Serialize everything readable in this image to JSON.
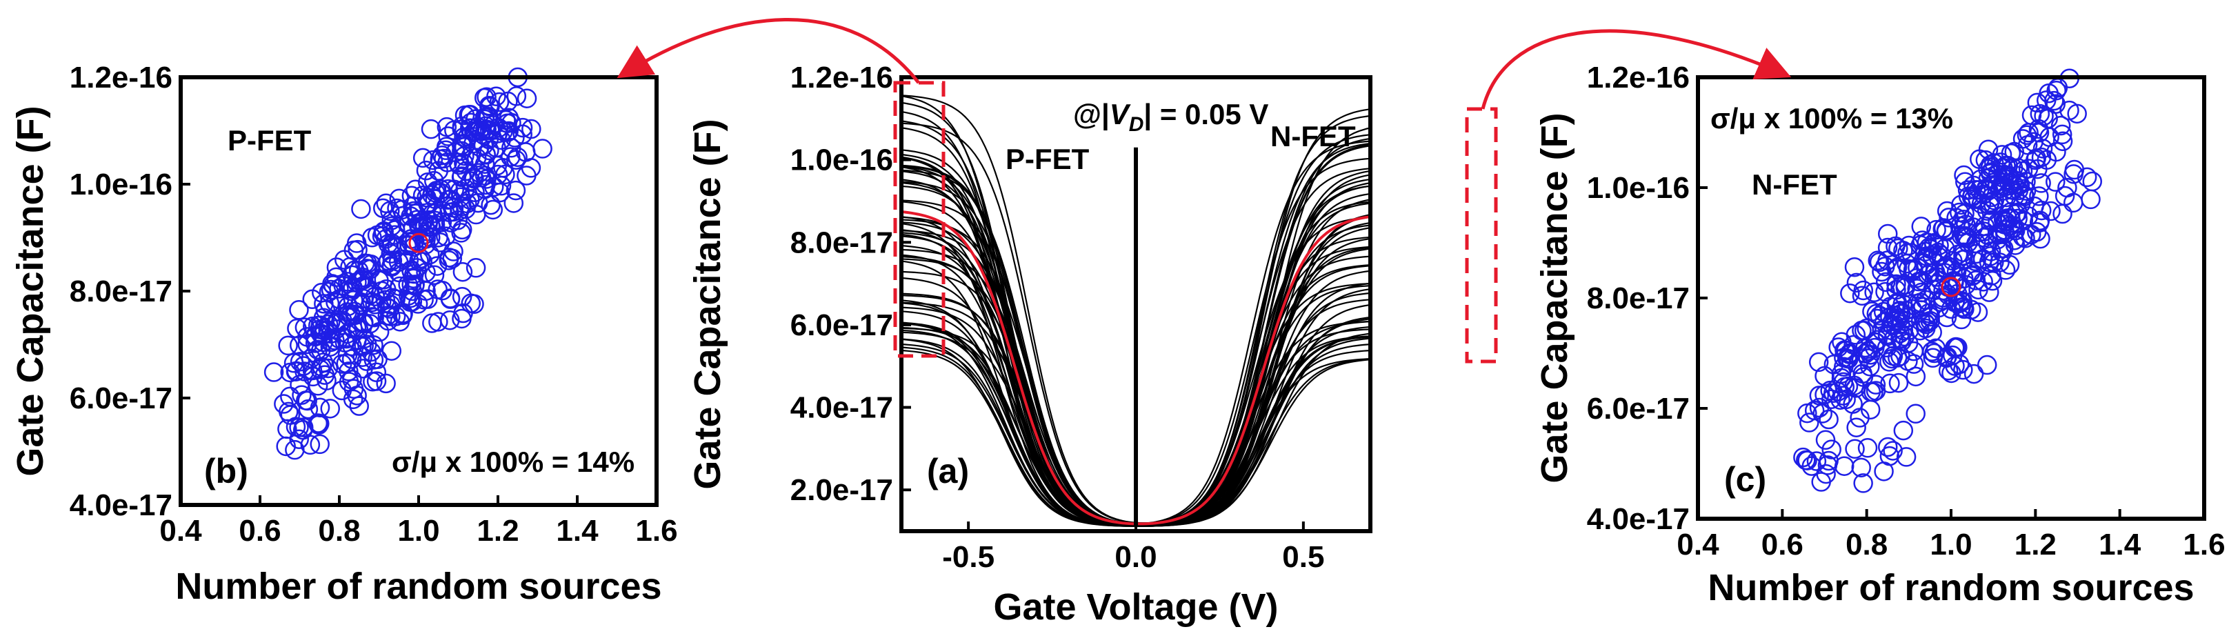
{
  "figure": {
    "colors": {
      "axis": "#000000",
      "scatter": "#1f1fe6",
      "mean": "#e6192b",
      "curve": "#000000",
      "mean_curve": "#e6192b",
      "highlight": "#e6192b"
    }
  },
  "chart_data": [
    {
      "id": "b",
      "type": "scatter",
      "panel_label": "(b)",
      "device_label": "P-FET",
      "stat_label": "σ/μ x 100% = 14%",
      "xlabel": "Number of random sources",
      "ylabel": "Gate Capacitance (F)",
      "xlim": [
        0.4,
        1.6
      ],
      "ylim": [
        4e-17,
        1.2e-16
      ],
      "xticks": [
        0.4,
        0.6,
        0.8,
        1.0,
        1.2,
        1.4,
        1.6
      ],
      "xtick_labels": [
        "0.4",
        "0.6",
        "0.8",
        "1.0",
        "1.2",
        "1.4",
        "1.6"
      ],
      "yticks": [
        4e-17,
        6e-17,
        8e-17,
        1e-16,
        1.2e-16
      ],
      "ytick_labels": [
        "4.0e-17",
        "6.0e-17",
        "8.0e-17",
        "1.0e-16",
        "1.2e-16"
      ],
      "mean_point": {
        "x": 1.0,
        "y": 8.9e-17
      },
      "series": [
        {
          "name": "samples",
          "points": [
            [
              0.71,
              5.45e-17
            ],
            [
              0.7,
              6.25e-17
            ],
            [
              0.71,
              6.6e-17
            ],
            [
              0.74,
              7.15e-17
            ],
            [
              0.76,
              7.5e-17
            ],
            [
              0.78,
              7.05e-17
            ],
            [
              0.8,
              7.85e-17
            ],
            [
              0.81,
              8.1e-17
            ],
            [
              0.82,
              7.2e-17
            ],
            [
              0.84,
              7.55e-17
            ],
            [
              0.85,
              5.85e-17
            ],
            [
              0.86,
              6.55e-17
            ],
            [
              0.87,
              7e-17
            ],
            [
              0.88,
              8.5e-17
            ],
            [
              0.89,
              7.9e-17
            ],
            [
              0.9,
              8.2e-17
            ],
            [
              0.91,
              9.55e-17
            ],
            [
              0.92,
              7.7e-17
            ],
            [
              0.93,
              8.7e-17
            ],
            [
              0.94,
              9.05e-17
            ],
            [
              0.95,
              8.35e-17
            ],
            [
              0.96,
              7.55e-17
            ],
            [
              0.97,
              8.85e-17
            ],
            [
              0.98,
              9.4e-17
            ],
            [
              0.99,
              8.1e-17
            ],
            [
              1.0,
              9.25e-17
            ],
            [
              1.01,
              8.55e-17
            ],
            [
              1.02,
              9.75e-17
            ],
            [
              1.03,
              9e-17
            ],
            [
              1.04,
              8.3e-17
            ],
            [
              1.05,
              1.025e-16
            ],
            [
              1.06,
              9.5e-17
            ],
            [
              1.07,
              1.07e-16
            ],
            [
              1.08,
              7.85e-17
            ],
            [
              1.09,
              9.9e-17
            ],
            [
              1.1,
              1.04e-16
            ],
            [
              1.11,
              9.15e-17
            ],
            [
              1.12,
              1.085e-16
            ],
            [
              1.13,
              1.13e-16
            ],
            [
              1.14,
              1.01e-16
            ],
            [
              1.15,
              9.65e-17
            ],
            [
              1.16,
              1.1e-16
            ],
            [
              1.17,
              1.055e-16
            ],
            [
              1.18,
              1.145e-16
            ],
            [
              1.2,
              1.095e-16
            ],
            [
              1.22,
              1.12e-16
            ],
            [
              1.25,
              1.2e-16
            ],
            [
              1.27,
              1.06e-16
            ],
            [
              1.19,
              9.95e-17
            ],
            [
              0.83,
              8e-17
            ]
          ]
        }
      ]
    },
    {
      "id": "a",
      "type": "line",
      "panel_label": "(a)",
      "annotation": "@|V_D| = 0.05 V",
      "left_label": "P-FET",
      "right_label": "N-FET",
      "xlabel": "Gate Voltage (V)",
      "ylabel": "Gate Capacitance (F)",
      "xlim": [
        -0.7,
        0.7
      ],
      "ylim": [
        1e-17,
        1.2e-16
      ],
      "xticks": [
        -0.5,
        0.0,
        0.5
      ],
      "xtick_labels": [
        "-0.5",
        "0.0",
        "0.5"
      ],
      "yticks": [
        2e-17,
        4e-17,
        6e-17,
        8e-17,
        1e-16,
        1.2e-16
      ],
      "ytick_labels": [
        "2.0e-17",
        "4.0e-17",
        "6.0e-17",
        "8.0e-17",
        "1.0e-16",
        "1.2e-16"
      ],
      "pfet_curve_count": 60,
      "pfet_max_range": [
        5.3e-17,
        1.2e-16
      ],
      "nfet_max_range": [
        5.2e-17,
        1.13e-16
      ],
      "min_capacitance": 1.1e-17,
      "mean_curve": {
        "pfet_max": 8.8e-17,
        "nfet_max": 8.7e-17
      },
      "vd_line": {
        "x": 0.0,
        "y": 1.03e-16
      }
    },
    {
      "id": "c",
      "type": "scatter",
      "panel_label": "(c)",
      "device_label": "N-FET",
      "stat_label": "σ/μ x 100% = 13%",
      "xlabel": "Number of random sources",
      "ylabel": "Gate Capacitance (F)",
      "xlim": [
        0.4,
        1.6
      ],
      "ylim": [
        4e-17,
        1.2e-16
      ],
      "xticks": [
        0.4,
        0.6,
        0.8,
        1.0,
        1.2,
        1.4,
        1.6
      ],
      "xtick_labels": [
        "0.4",
        "0.6",
        "0.8",
        "1.0",
        "1.2",
        "1.4",
        "1.6"
      ],
      "yticks": [
        4e-17,
        6e-17,
        8e-17,
        1e-16,
        1.2e-16
      ],
      "ytick_labels": [
        "4.0e-17",
        "6.0e-17",
        "8.0e-17",
        "1.0e-16",
        "1.2e-16"
      ],
      "mean_point": {
        "x": 1.0,
        "y": 8.2e-17
      },
      "series": [
        {
          "name": "samples",
          "points": [
            [
              0.71,
              5.05e-17
            ],
            [
              0.71,
              5.8e-17
            ],
            [
              0.7,
              6.25e-17
            ],
            [
              0.74,
              6.55e-17
            ],
            [
              0.76,
              7e-17
            ],
            [
              0.78,
              6.8e-17
            ],
            [
              0.8,
              7.45e-17
            ],
            [
              0.81,
              6.3e-17
            ],
            [
              0.82,
              7.2e-17
            ],
            [
              0.84,
              7.75e-17
            ],
            [
              0.85,
              5.3e-17
            ],
            [
              0.86,
              6.9e-17
            ],
            [
              0.87,
              7.6e-17
            ],
            [
              0.88,
              8.2e-17
            ],
            [
              0.89,
              7.3e-17
            ],
            [
              0.9,
              8.95e-17
            ],
            [
              0.91,
              8.5e-17
            ],
            [
              0.92,
              7.9e-17
            ],
            [
              0.93,
              8.1e-17
            ],
            [
              0.94,
              7.45e-17
            ],
            [
              0.95,
              8.45e-17
            ],
            [
              0.96,
              7e-17
            ],
            [
              0.97,
              8.75e-17
            ],
            [
              0.98,
              9.25e-17
            ],
            [
              0.99,
              7.65e-17
            ],
            [
              1.0,
              8.55e-17
            ],
            [
              1.01,
              7.95e-17
            ],
            [
              1.02,
              9.55e-17
            ],
            [
              1.03,
              8.35e-17
            ],
            [
              1.04,
              9e-17
            ],
            [
              1.05,
              9.85e-17
            ],
            [
              1.06,
              8.8e-17
            ],
            [
              1.07,
              1.015e-16
            ],
            [
              1.08,
              9.3e-17
            ],
            [
              1.09,
              8.65e-17
            ],
            [
              1.1,
              9.7e-17
            ],
            [
              1.11,
              1.005e-16
            ],
            [
              1.12,
              8.9e-17
            ],
            [
              1.13,
              1.04e-16
            ],
            [
              1.14,
              9.45e-17
            ],
            [
              1.15,
              1.065e-16
            ],
            [
              1.16,
              9.95e-17
            ],
            [
              1.17,
              1.03e-16
            ],
            [
              1.19,
              9.15e-17
            ],
            [
              1.2,
              1.05e-16
            ],
            [
              1.22,
              1.13e-16
            ],
            [
              1.23,
              1.125e-16
            ],
            [
              1.27,
              9.85e-17
            ],
            [
              1.02,
              6.8e-17
            ],
            [
              0.83,
              8.65e-17
            ]
          ]
        }
      ]
    }
  ]
}
